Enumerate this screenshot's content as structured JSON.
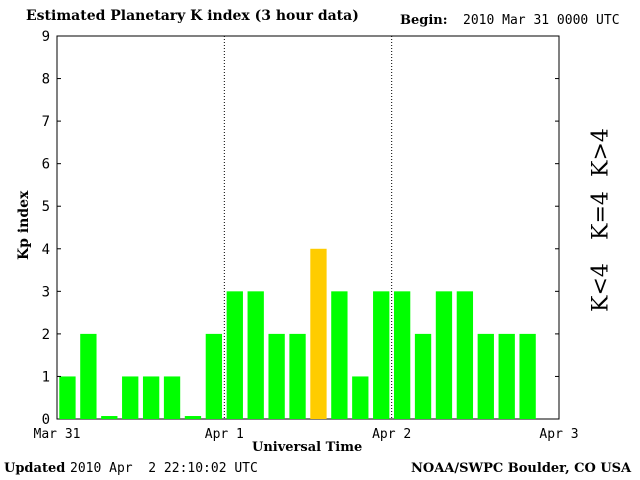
{
  "header": {
    "title": "Estimated Planetary K index (3 hour data)",
    "begin_label": "Begin:",
    "begin_value": "2010 Mar 31 0000 UTC"
  },
  "footer": {
    "updated_label": "Updated",
    "updated_value": "2010 Apr  2 22:10:02 UTC",
    "source": "NOAA/SWPC Boulder, CO USA"
  },
  "legend": {
    "low": "K<4",
    "equal": "K=4",
    "high": "K>4"
  },
  "colors": {
    "low": "#00ff00",
    "equal": "#ffcc00",
    "high": "#ff2200"
  },
  "chart_data": {
    "type": "bar",
    "title": "Estimated Planetary K index (3 hour data)",
    "xlabel": "Universal Time",
    "ylabel": "Kp index",
    "ylim": [
      0,
      9
    ],
    "yticks": [
      "0",
      "1",
      "2",
      "3",
      "4",
      "5",
      "6",
      "7",
      "8",
      "9"
    ],
    "xticks": [
      "Mar 31",
      "Apr 1",
      "Apr 2",
      "Apr 3"
    ],
    "day_separators": true,
    "values": [
      1,
      2,
      0.07,
      1,
      1,
      1,
      0.07,
      2,
      3,
      3,
      2,
      2,
      4,
      3,
      1,
      3,
      3,
      2,
      3,
      3,
      2,
      2,
      2
    ]
  }
}
